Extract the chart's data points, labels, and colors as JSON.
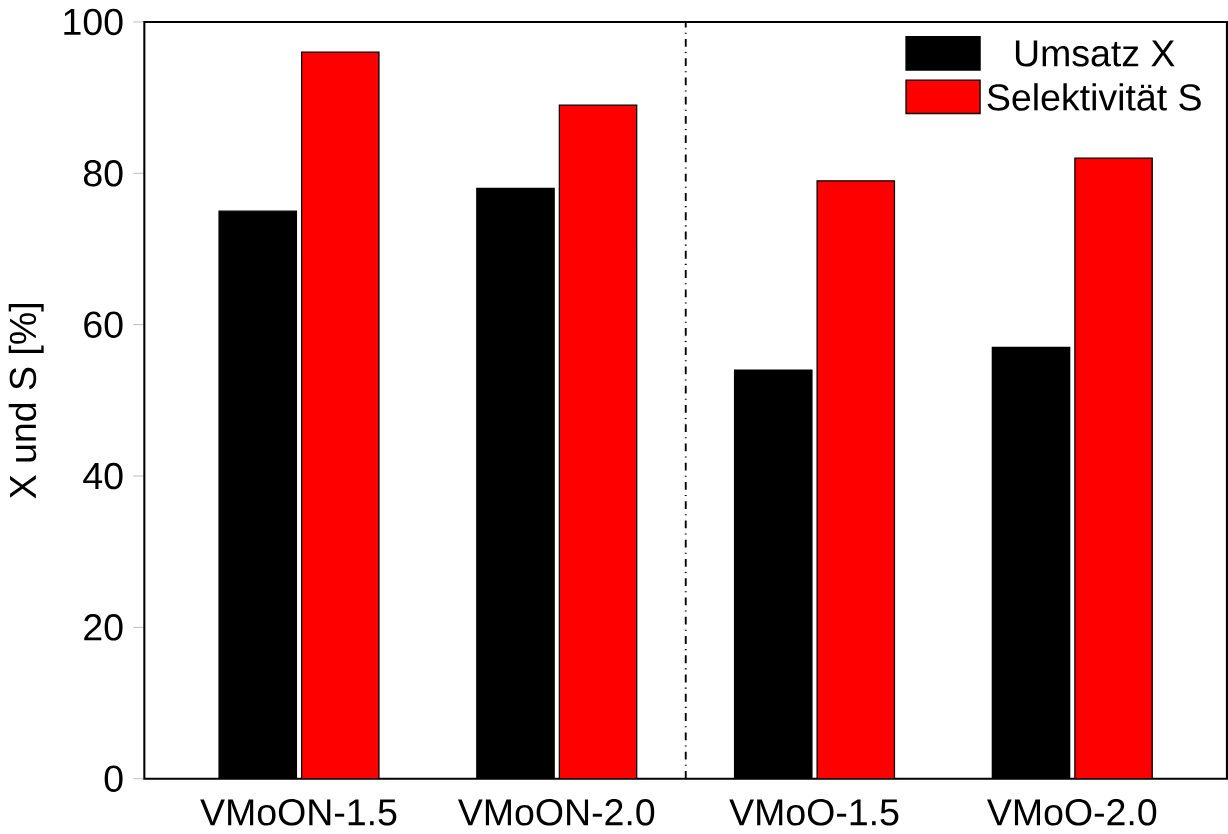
{
  "chart_data": {
    "type": "bar",
    "ylabel": "X und S [%]",
    "categories": [
      "VMoON-1.5",
      "VMoON-2.0",
      "VMoO-1.5",
      "VMoO-2.0"
    ],
    "series": [
      {
        "name": "Umsatz X",
        "color": "#000000",
        "values": [
          75,
          78,
          54,
          57
        ]
      },
      {
        "name": "Selektivität S",
        "color": "#ff0000",
        "values": [
          96,
          89,
          79,
          82
        ]
      }
    ],
    "ylim": [
      0,
      100
    ],
    "yticks": [
      0,
      20,
      40,
      60,
      80,
      100
    ],
    "legend": "top right"
  }
}
